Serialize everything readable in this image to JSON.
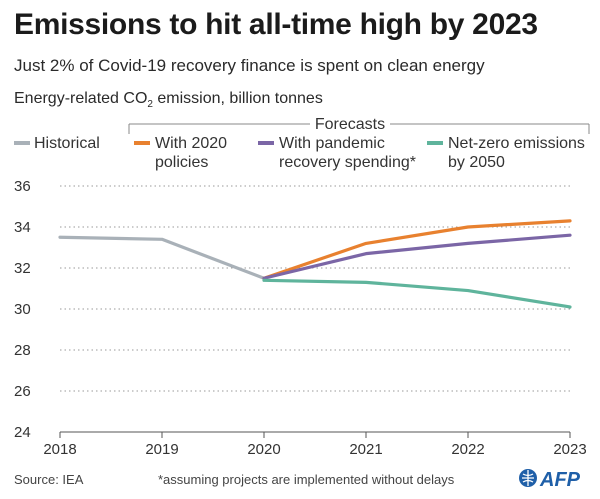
{
  "header": {
    "title": "Emissions to hit all-time high by 2023",
    "subtitle": "Just 2% of Covid-19 recovery finance is spent on clean energy",
    "metric_prefix": "Energy-related CO",
    "metric_sub": "2",
    "metric_suffix": " emission, billion tonnes"
  },
  "legend": {
    "forecasts_label": "Forecasts",
    "historical": "Historical",
    "policies_line1": "With 2020",
    "policies_line2": "policies",
    "pandemic_line1": "With pandemic",
    "pandemic_line2": "recovery spending*",
    "netzero_line1": "Net-zero emissions",
    "netzero_line2": "by 2050"
  },
  "footer": {
    "source": "Source: IEA",
    "footnote": "*assuming projects are implemented without delays",
    "logo": "AFP"
  },
  "colors": {
    "historical": "#a9b1b8",
    "policies": "#e8812f",
    "pandemic": "#7b66a6",
    "netzero": "#5fb49c",
    "grid": "#9a9a9a",
    "axis": "#555555"
  },
  "chart_data": {
    "type": "line",
    "title": "Emissions to hit all-time high by 2023",
    "ylabel": "Energy-related CO2 emission, billion tonnes",
    "xlabel": "",
    "x": [
      2018,
      2019,
      2020,
      2021,
      2022,
      2023
    ],
    "ylim": [
      24,
      36
    ],
    "yticks": [
      24,
      26,
      28,
      30,
      32,
      34,
      36
    ],
    "grid": true,
    "series": [
      {
        "name": "Historical",
        "key": "historical",
        "x": [
          2018,
          2019,
          2020
        ],
        "values": [
          33.5,
          33.4,
          31.5
        ]
      },
      {
        "name": "With 2020 policies",
        "key": "policies",
        "x": [
          2020,
          2021,
          2022,
          2023
        ],
        "values": [
          31.5,
          33.2,
          34.0,
          34.3
        ]
      },
      {
        "name": "With pandemic recovery spending*",
        "key": "pandemic",
        "x": [
          2020,
          2021,
          2022,
          2023
        ],
        "values": [
          31.5,
          32.7,
          33.2,
          33.6
        ]
      },
      {
        "name": "Net-zero emissions by 2050",
        "key": "netzero",
        "x": [
          2020,
          2021,
          2022,
          2023
        ],
        "values": [
          31.4,
          31.3,
          30.9,
          30.1
        ]
      }
    ]
  }
}
